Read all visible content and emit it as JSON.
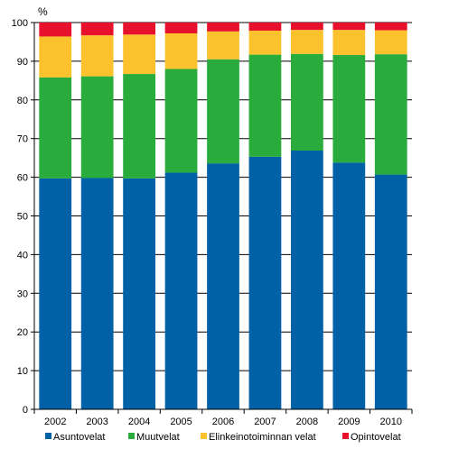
{
  "chart_data": {
    "type": "bar",
    "stacked": true,
    "unit_label": "%",
    "categories": [
      "2002",
      "2003",
      "2004",
      "2005",
      "2006",
      "2007",
      "2008",
      "2009",
      "2010"
    ],
    "series": [
      {
        "name": "Asuntovelat",
        "color": "#0061a6",
        "values": [
          59.7,
          59.8,
          59.7,
          61.2,
          63.6,
          65.3,
          66.9,
          63.8,
          60.7
        ]
      },
      {
        "name": "Muutvelat",
        "color": "#29ac3b",
        "values": [
          26.1,
          26.3,
          27.0,
          26.8,
          26.9,
          26.4,
          25.0,
          27.8,
          31.1
        ]
      },
      {
        "name": "Elinkeinotoiminnan velat",
        "color": "#fbc22d",
        "values": [
          10.6,
          10.6,
          10.2,
          9.2,
          7.2,
          6.2,
          6.2,
          6.5,
          6.2
        ]
      },
      {
        "name": "Opintovelat",
        "color": "#e8112d",
        "values": [
          3.6,
          3.3,
          3.1,
          2.8,
          2.3,
          2.1,
          1.9,
          1.9,
          2.0
        ]
      }
    ],
    "ylim": [
      0,
      100
    ],
    "yticks": [
      0,
      10,
      20,
      30,
      40,
      50,
      60,
      70,
      80,
      90,
      100
    ],
    "grid": true,
    "legend_position": "bottom"
  }
}
